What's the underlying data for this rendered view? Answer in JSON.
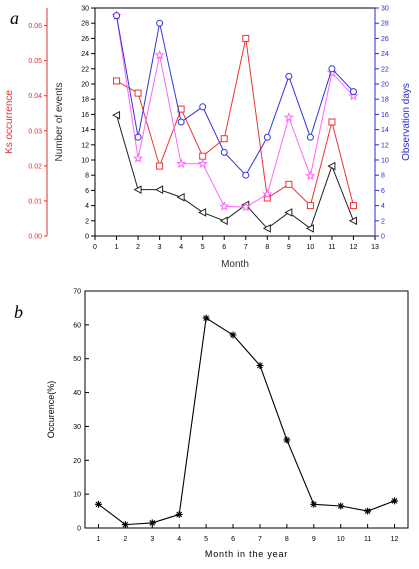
{
  "panels": [
    {
      "letter": "a"
    },
    {
      "letter": "b"
    }
  ],
  "chart_data": [
    {
      "type": "line",
      "x": [
        1,
        2,
        3,
        4,
        5,
        6,
        7,
        8,
        9,
        10,
        11,
        12
      ],
      "xlabel": "Month",
      "xlim": [
        0,
        13
      ],
      "xticks": [
        0,
        1,
        2,
        3,
        4,
        5,
        6,
        7,
        8,
        9,
        10,
        11,
        12,
        13
      ],
      "axes": {
        "ks": {
          "label": "Ks occurrence",
          "color": "#e03030",
          "lim": [
            0,
            0.065
          ],
          "ticks": [
            "0.00",
            "0.01",
            "0.02",
            "0.03",
            "0.04",
            "0.05",
            "0.06"
          ]
        },
        "events": {
          "label": "Number of events",
          "color": "#000000",
          "lim": [
            0,
            30
          ],
          "ticks": [
            "0",
            "2",
            "4",
            "6",
            "8",
            "10",
            "12",
            "14",
            "16",
            "18",
            "20",
            "22",
            "24",
            "26",
            "28",
            "30"
          ]
        },
        "obs": {
          "label": "Observation days",
          "color": "#2a2acc",
          "lim": [
            0,
            30
          ],
          "ticks": [
            "0",
            "2",
            "4",
            "6",
            "8",
            "10",
            "12",
            "14",
            "16",
            "18",
            "20",
            "22",
            "24",
            "26",
            "28",
            "30"
          ]
        }
      },
      "series": [
        {
          "color": "#ee3333",
          "marker": "square",
          "axis": "events",
          "values": [
            20.4,
            18.8,
            9.2,
            16.7,
            10.5,
            12.8,
            26,
            5,
            6.8,
            4,
            15,
            4
          ]
        },
        {
          "color": "#222222",
          "marker": "triangle-left",
          "axis": "events",
          "values": [
            15.9,
            6.1,
            6.1,
            5.1,
            3.1,
            2,
            4.1,
            1,
            3.1,
            1,
            9.2,
            2
          ]
        },
        {
          "color": "#ff66ff",
          "marker": "star",
          "axis": "events",
          "values": [
            29,
            10.2,
            23.8,
            9.5,
            9.5,
            3.9,
            3.8,
            5.5,
            15.6,
            7.9,
            21.5,
            18.4
          ]
        },
        {
          "color": "#3333dd",
          "marker": "circle",
          "axis": "events",
          "values": [
            29,
            13,
            28,
            15,
            17,
            11,
            8,
            13,
            21,
            13,
            22,
            19
          ]
        }
      ]
    },
    {
      "type": "line",
      "x": [
        1,
        2,
        3,
        4,
        5,
        6,
        7,
        8,
        9,
        10,
        11,
        12
      ],
      "xlabel": "Month in the year",
      "ylabel": "Occurence(%)",
      "xlim": [
        0.5,
        12.5
      ],
      "ylim": [
        0,
        70
      ],
      "xticks": [
        1,
        2,
        3,
        4,
        5,
        6,
        7,
        8,
        9,
        10,
        11,
        12
      ],
      "yticks": [
        0,
        10,
        20,
        30,
        40,
        50,
        60,
        70
      ],
      "series": [
        {
          "color": "#000000",
          "marker": "asterisk",
          "values": [
            7,
            1,
            1.5,
            4,
            62,
            57,
            48,
            26,
            7,
            6.5,
            5,
            8
          ]
        }
      ]
    }
  ]
}
